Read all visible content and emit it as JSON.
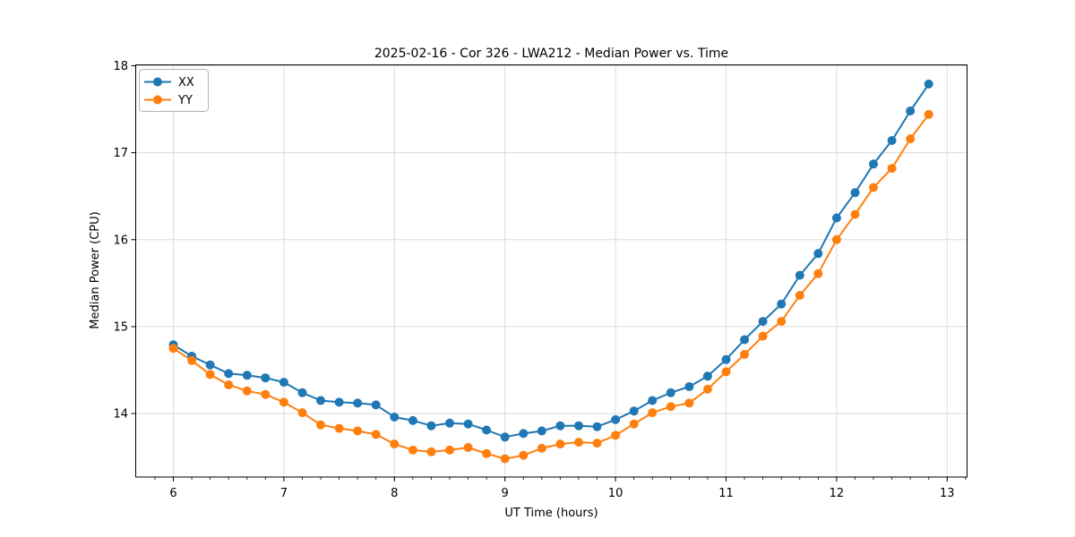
{
  "chart_data": {
    "type": "line",
    "title": "2025-02-16 - Cor 326 - LWA212 - Median Power vs. Time",
    "xlabel": "UT Time (hours)",
    "ylabel": "Median Power (CPU)",
    "legend_position": "upper left",
    "grid": true,
    "grid_color": "#dcdcdc",
    "spine_color": "#000000",
    "xlim": [
      5.66,
      13.18
    ],
    "ylim": [
      13.27,
      18.01
    ],
    "x_ticks": [
      6,
      7,
      8,
      9,
      10,
      11,
      12,
      13
    ],
    "x_tick_labels": [
      "6",
      "7",
      "8",
      "9",
      "10",
      "11",
      "12",
      "13"
    ],
    "x_minor_step": 0.166667,
    "y_ticks": [
      14,
      15,
      16,
      17,
      18
    ],
    "y_tick_labels": [
      "14",
      "15",
      "16",
      "17",
      "18"
    ],
    "x": [
      6.0,
      6.167,
      6.333,
      6.5,
      6.667,
      6.833,
      7.0,
      7.167,
      7.333,
      7.5,
      7.667,
      7.833,
      8.0,
      8.167,
      8.333,
      8.5,
      8.667,
      8.833,
      9.0,
      9.167,
      9.333,
      9.5,
      9.667,
      9.833,
      10.0,
      10.167,
      10.333,
      10.5,
      10.667,
      10.833,
      11.0,
      11.167,
      11.333,
      11.5,
      11.667,
      11.833,
      12.0,
      12.167,
      12.333,
      12.5,
      12.667,
      12.833
    ],
    "series": [
      {
        "name": "XX",
        "color": "#1f77b4",
        "values": [
          14.79,
          14.66,
          14.56,
          14.46,
          14.44,
          14.41,
          14.36,
          14.24,
          14.15,
          14.13,
          14.12,
          14.1,
          13.96,
          13.92,
          13.86,
          13.89,
          13.88,
          13.81,
          13.73,
          13.77,
          13.8,
          13.86,
          13.86,
          13.85,
          13.93,
          14.03,
          14.15,
          14.24,
          14.31,
          14.43,
          14.62,
          14.85,
          15.06,
          15.26,
          15.59,
          15.84,
          16.25,
          16.54,
          16.87,
          17.14,
          17.48,
          17.79
        ]
      },
      {
        "name": "YY",
        "color": "#ff7f0e",
        "values": [
          14.75,
          14.61,
          14.45,
          14.33,
          14.26,
          14.22,
          14.13,
          14.01,
          13.87,
          13.83,
          13.8,
          13.76,
          13.65,
          13.58,
          13.56,
          13.58,
          13.61,
          13.54,
          13.48,
          13.52,
          13.6,
          13.65,
          13.67,
          13.66,
          13.75,
          13.88,
          14.01,
          14.08,
          14.12,
          14.28,
          14.48,
          14.68,
          14.89,
          15.06,
          15.36,
          15.61,
          16.0,
          16.29,
          16.6,
          16.82,
          17.16,
          17.44
        ]
      }
    ]
  }
}
